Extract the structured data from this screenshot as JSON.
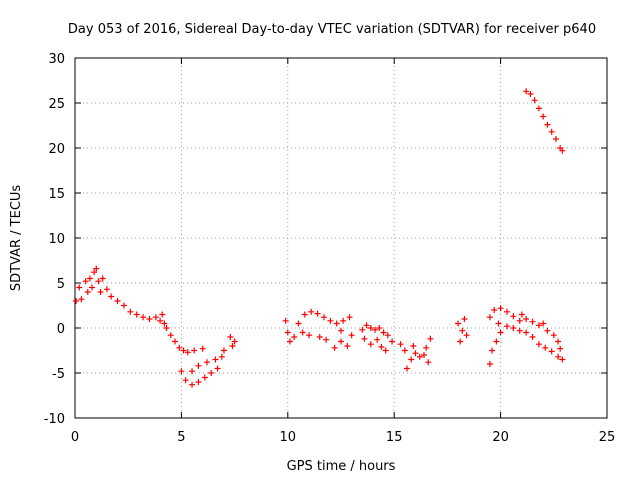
{
  "chart_data": {
    "type": "scatter",
    "title": "Day 053 of 2016, Sidereal Day-to-day VTEC variation (SDTVAR) for receiver p640",
    "xlabel": "GPS time / hours",
    "ylabel": "SDTVAR / TECUs",
    "xlim": [
      0,
      25
    ],
    "ylim": [
      -10,
      30
    ],
    "xticks": [
      "0",
      "5",
      "10",
      "15",
      "20",
      "25"
    ],
    "yticks": [
      "-10",
      "-5",
      "0",
      "5",
      "10",
      "15",
      "20",
      "25",
      "30"
    ],
    "grid": true,
    "marker": "+",
    "color": "#ff0000",
    "series": [
      {
        "name": "seg1",
        "points": [
          [
            0.05,
            3.0
          ],
          [
            0.2,
            4.5
          ],
          [
            0.3,
            3.2
          ],
          [
            0.5,
            5.2
          ],
          [
            0.6,
            4.0
          ],
          [
            0.7,
            5.5
          ],
          [
            0.8,
            4.5
          ],
          [
            0.9,
            6.2
          ],
          [
            1.0,
            6.6
          ],
          [
            1.1,
            5.2
          ],
          [
            1.2,
            4.0
          ],
          [
            1.3,
            5.5
          ],
          [
            1.5,
            4.3
          ],
          [
            1.7,
            3.5
          ],
          [
            2.0,
            3.0
          ],
          [
            2.3,
            2.5
          ],
          [
            2.6,
            1.8
          ],
          [
            2.9,
            1.5
          ],
          [
            3.2,
            1.2
          ],
          [
            3.5,
            1.0
          ],
          [
            3.8,
            1.2
          ],
          [
            4.0,
            0.8
          ],
          [
            4.1,
            1.5
          ],
          [
            4.2,
            0.5
          ]
        ]
      },
      {
        "name": "seg2",
        "points": [
          [
            4.3,
            0.0
          ],
          [
            4.5,
            -0.8
          ],
          [
            4.7,
            -1.5
          ],
          [
            4.9,
            -2.2
          ],
          [
            5.1,
            -2.5
          ],
          [
            5.3,
            -2.7
          ],
          [
            5.6,
            -2.5
          ],
          [
            6.0,
            -2.3
          ],
          [
            5.0,
            -4.8
          ],
          [
            5.2,
            -5.8
          ],
          [
            5.5,
            -6.3
          ],
          [
            5.8,
            -6.0
          ],
          [
            6.1,
            -5.5
          ],
          [
            6.4,
            -5.0
          ],
          [
            6.7,
            -4.5
          ],
          [
            5.5,
            -4.8
          ],
          [
            5.8,
            -4.2
          ],
          [
            6.2,
            -3.8
          ],
          [
            6.6,
            -3.5
          ],
          [
            6.9,
            -3.2
          ],
          [
            7.0,
            -2.5
          ],
          [
            7.3,
            -1.0
          ],
          [
            7.4,
            -2.0
          ],
          [
            7.5,
            -1.5
          ]
        ]
      },
      {
        "name": "seg3",
        "points": [
          [
            9.9,
            0.8
          ],
          [
            10.0,
            -0.5
          ],
          [
            10.1,
            -1.5
          ],
          [
            10.3,
            -1.0
          ],
          [
            10.5,
            0.5
          ],
          [
            10.8,
            1.5
          ],
          [
            11.1,
            1.8
          ],
          [
            11.4,
            1.6
          ],
          [
            11.7,
            1.2
          ],
          [
            12.0,
            0.8
          ],
          [
            12.3,
            0.5
          ],
          [
            12.6,
            0.8
          ],
          [
            12.9,
            1.2
          ],
          [
            13.0,
            -0.8
          ],
          [
            12.5,
            -1.5
          ],
          [
            12.2,
            -2.2
          ],
          [
            11.8,
            -1.3
          ],
          [
            11.5,
            -1.0
          ],
          [
            11.0,
            -0.8
          ],
          [
            10.7,
            -0.5
          ],
          [
            12.8,
            -2.0
          ],
          [
            12.5,
            -0.3
          ]
        ]
      },
      {
        "name": "seg4",
        "points": [
          [
            13.5,
            -0.2
          ],
          [
            13.7,
            0.3
          ],
          [
            13.9,
            0.0
          ],
          [
            14.1,
            -0.2
          ],
          [
            14.3,
            0.0
          ],
          [
            14.5,
            -0.5
          ],
          [
            14.7,
            -0.8
          ],
          [
            14.9,
            -1.5
          ],
          [
            13.6,
            -1.2
          ],
          [
            13.9,
            -1.8
          ],
          [
            14.2,
            -1.3
          ],
          [
            14.4,
            -2.1
          ],
          [
            14.6,
            -2.5
          ]
        ]
      },
      {
        "name": "seg5",
        "points": [
          [
            15.3,
            -1.8
          ],
          [
            15.5,
            -2.5
          ],
          [
            15.6,
            -4.5
          ],
          [
            15.8,
            -3.5
          ],
          [
            16.0,
            -2.8
          ],
          [
            16.2,
            -3.2
          ],
          [
            16.4,
            -3.0
          ],
          [
            16.6,
            -3.8
          ],
          [
            16.7,
            -1.2
          ],
          [
            15.9,
            -2.0
          ],
          [
            16.5,
            -2.2
          ]
        ]
      },
      {
        "name": "seg6",
        "points": [
          [
            18.0,
            0.5
          ],
          [
            18.1,
            -1.5
          ],
          [
            18.2,
            -0.3
          ],
          [
            18.3,
            1.0
          ],
          [
            18.4,
            -0.8
          ]
        ]
      },
      {
        "name": "seg7",
        "points": [
          [
            19.5,
            1.2
          ],
          [
            19.7,
            2.0
          ],
          [
            20.0,
            2.2
          ],
          [
            20.3,
            1.8
          ],
          [
            20.6,
            1.3
          ],
          [
            20.9,
            0.8
          ],
          [
            21.2,
            1.0
          ],
          [
            21.5,
            0.7
          ],
          [
            21.8,
            0.3
          ],
          [
            22.0,
            0.5
          ],
          [
            22.2,
            -0.3
          ],
          [
            22.5,
            -0.8
          ],
          [
            22.7,
            -1.5
          ],
          [
            22.8,
            -2.3
          ],
          [
            19.5,
            -4.0
          ],
          [
            19.6,
            -2.5
          ],
          [
            19.8,
            -1.5
          ],
          [
            20.0,
            -0.5
          ],
          [
            20.3,
            0.2
          ],
          [
            20.6,
            0.0
          ],
          [
            20.9,
            -0.3
          ],
          [
            21.2,
            -0.5
          ],
          [
            21.5,
            -1.0
          ],
          [
            21.8,
            -1.8
          ],
          [
            22.1,
            -2.2
          ],
          [
            22.4,
            -2.6
          ],
          [
            22.7,
            -3.2
          ],
          [
            22.9,
            -3.5
          ],
          [
            19.9,
            0.5
          ],
          [
            21.0,
            1.5
          ]
        ]
      },
      {
        "name": "seg8",
        "points": [
          [
            21.2,
            26.3
          ],
          [
            21.4,
            26.0
          ],
          [
            21.6,
            25.3
          ],
          [
            21.8,
            24.4
          ],
          [
            22.0,
            23.5
          ],
          [
            22.2,
            22.6
          ],
          [
            22.4,
            21.8
          ],
          [
            22.6,
            21.0
          ],
          [
            22.8,
            20.0
          ],
          [
            22.9,
            19.7
          ]
        ]
      }
    ]
  }
}
